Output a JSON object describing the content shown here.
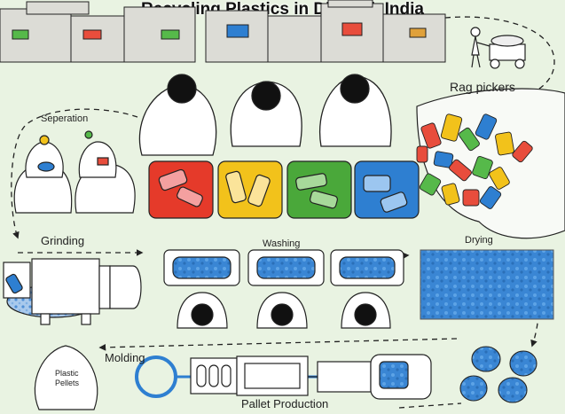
{
  "title": "Recycling Plastics in Dharavi, India",
  "stages": {
    "rag_pickers": "Rag pickers",
    "separation": "Seperation",
    "grinding": "Grinding",
    "washing": "Washing",
    "drying": "Drying",
    "molding": "Molding",
    "pallet_production": "Pallet Production",
    "plastic_pellets_line1": "Plastic",
    "plastic_pellets_line2": "Pellets"
  },
  "colors": {
    "background": "#e9f3e2",
    "bin_red": "#e53a2a",
    "bin_yellow": "#f2c21b",
    "bin_green": "#4aa83a",
    "bin_blue": "#2e7fd1",
    "water_blue": "#3a86d4",
    "outline": "#222222"
  }
}
